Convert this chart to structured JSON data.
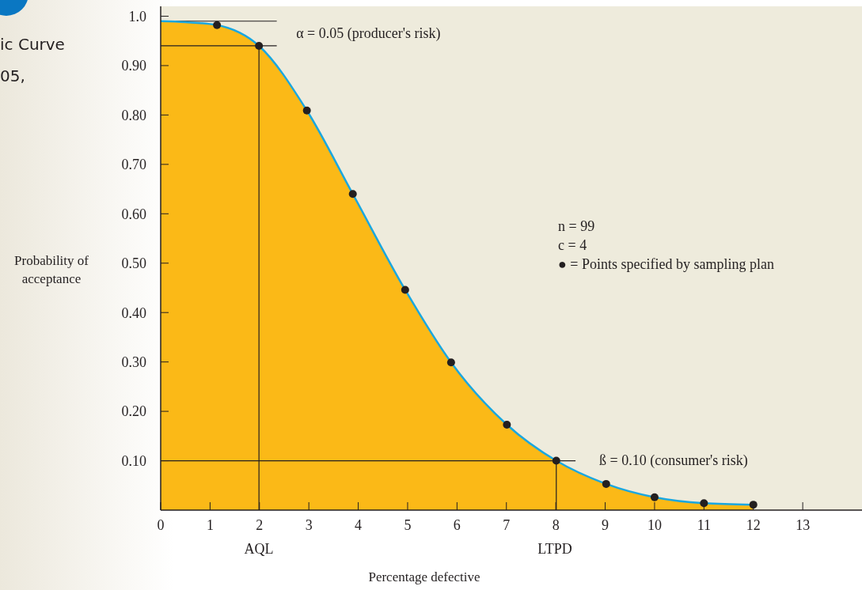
{
  "chart_data": {
    "type": "line",
    "xlabel": "Percentage defective",
    "ylabel": "Probability of acceptance",
    "xlim": [
      0,
      14.2
    ],
    "ylim": [
      0,
      1.02
    ],
    "xticks": [
      0,
      1,
      2,
      3,
      4,
      5,
      6,
      7,
      8,
      9,
      10,
      11,
      12,
      13
    ],
    "yticks": [
      {
        "value": 0.1,
        "label": "0.10"
      },
      {
        "value": 0.2,
        "label": "0.20"
      },
      {
        "value": 0.3,
        "label": "0.30"
      },
      {
        "value": 0.4,
        "label": "0.40"
      },
      {
        "value": 0.5,
        "label": "0.50"
      },
      {
        "value": 0.6,
        "label": "0.60"
      },
      {
        "value": 0.7,
        "label": "0.70"
      },
      {
        "value": 0.8,
        "label": "0.80"
      },
      {
        "value": 0.9,
        "label": "0.90"
      },
      {
        "value": 1.0,
        "label": "1.0"
      }
    ],
    "grid": false,
    "legend": false,
    "series": [
      {
        "type": "area",
        "color": "#fbb917",
        "x": [
          0,
          0.5,
          1.14,
          1.99,
          2.96,
          3.89,
          4.95,
          5.88,
          7.01,
          8.01,
          9.02,
          10,
          11,
          12
        ],
        "values": [
          0.99,
          0.988,
          0.982,
          0.94,
          0.809,
          0.64,
          0.446,
          0.299,
          0.173,
          0.1,
          0.053,
          0.026,
          0.014,
          0.011
        ]
      },
      {
        "color": "#231f20",
        "x": [
          0,
          2.35
        ],
        "values": [
          0.99,
          0.99
        ]
      },
      {
        "color": "#231f20",
        "x": [
          0,
          2.35
        ],
        "values": [
          0.94,
          0.94
        ]
      },
      {
        "color": "#231f20",
        "x": [
          1.99,
          1.99
        ],
        "values": [
          0,
          0.94
        ]
      },
      {
        "color": "#231f20",
        "x": [
          0,
          8.4
        ],
        "values": [
          0.1,
          0.1
        ]
      },
      {
        "color": "#231f20",
        "x": [
          8.01,
          8.01
        ],
        "values": [
          0,
          0.1
        ]
      },
      {
        "color": "#1aa7e0",
        "x": [
          0,
          0.5,
          1.14,
          1.99,
          2.96,
          3.89,
          4.95,
          5.88,
          7.01,
          8.01,
          9.02,
          10,
          11,
          12
        ],
        "values": [
          0.99,
          0.988,
          0.982,
          0.94,
          0.809,
          0.64,
          0.446,
          0.299,
          0.173,
          0.1,
          0.053,
          0.026,
          0.014,
          0.011
        ]
      },
      {
        "type": "scatter",
        "color": "#231f20",
        "marker": "circle",
        "x": [
          1.14,
          1.99,
          2.96,
          3.89,
          4.95,
          5.88,
          7.01,
          8.01,
          9.02,
          10,
          11,
          12
        ],
        "values": [
          0.982,
          0.94,
          0.809,
          0.64,
          0.446,
          0.299,
          0.173,
          0.1,
          0.053,
          0.026,
          0.014,
          0.011
        ]
      }
    ],
    "annotations": [
      {
        "text": "α = 0.05 (producer's risk)",
        "x": 1.99,
        "y": 0.94
      },
      "ß = 0.10 (consumer's risk)",
      "n = 99",
      "c = 4",
      "● = Points specified by sampling plan",
      "AQL",
      "LTPD",
      "ic Curve",
      "05,"
    ]
  }
}
